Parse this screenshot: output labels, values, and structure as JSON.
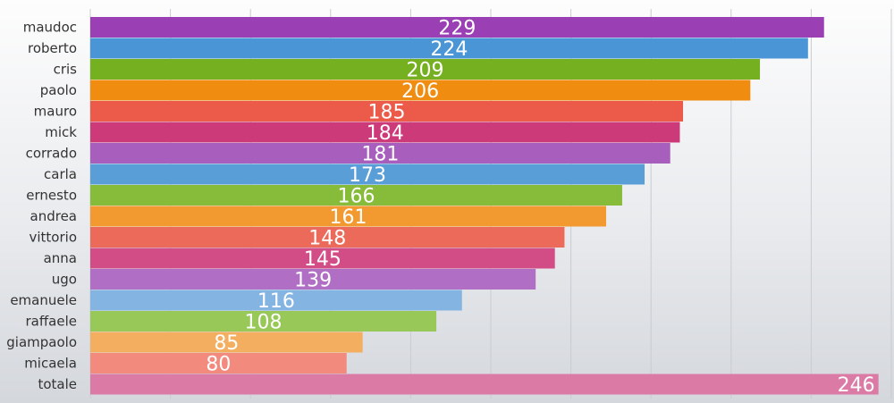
{
  "chart_data": {
    "type": "bar",
    "orientation": "horizontal",
    "title": "",
    "xlabel": "",
    "ylabel": "",
    "categories": [
      "maudoc",
      "roberto",
      "cris",
      "paolo",
      "mauro",
      "mick",
      "corrado",
      "carla",
      "ernesto",
      "andrea",
      "vittorio",
      "anna",
      "ugo",
      "emanuele",
      "raffaele",
      "giampaolo",
      "micaela",
      "totale"
    ],
    "values": [
      229,
      224,
      209,
      206,
      185,
      184,
      181,
      173,
      166,
      161,
      148,
      145,
      139,
      116,
      108,
      85,
      80,
      246
    ],
    "xlim": [
      0,
      250
    ],
    "grid": true,
    "legend": "none",
    "bar_colors": [
      "#9a3fb4",
      "#4a95d6",
      "#74b020",
      "#f08c10",
      "#ec5a4a",
      "#cc3a7a",
      "#a85ebc",
      "#5a9ed8",
      "#86bc3a",
      "#f29a30",
      "#ec6a5a",
      "#d24c86",
      "#b06ec4",
      "#84b4e2",
      "#98c858",
      "#f4ae60",
      "#f28a7e",
      "#dc7aa6"
    ]
  }
}
